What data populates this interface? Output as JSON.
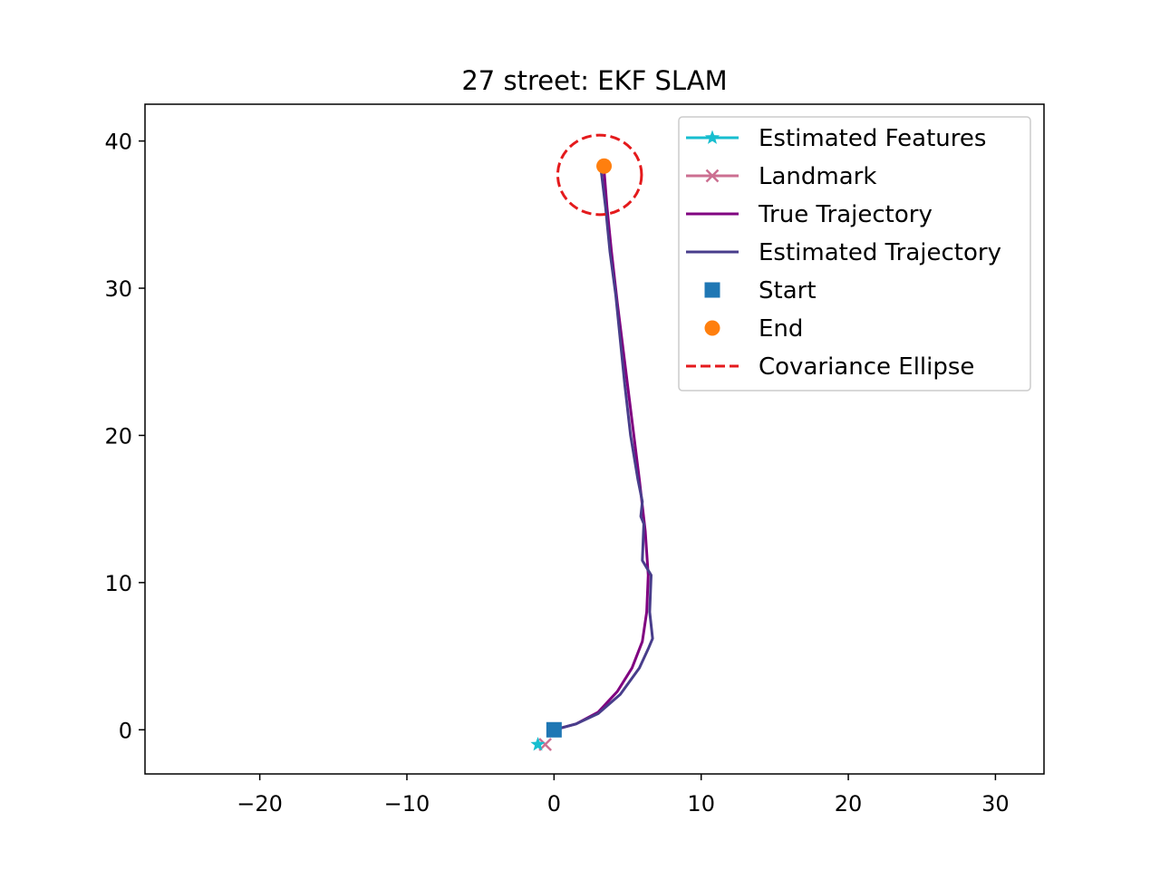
{
  "chart_data": {
    "type": "line",
    "title": "27 street: EKF SLAM",
    "xlabel": "",
    "ylabel": "",
    "xlim": [
      -27.8,
      33.3
    ],
    "ylim": [
      -3.0,
      42.5
    ],
    "xticks": [
      -20,
      -10,
      0,
      10,
      20,
      30
    ],
    "yticks": [
      0,
      10,
      20,
      30,
      40
    ],
    "xtick_labels": [
      "−20",
      "−10",
      "0",
      "10",
      "20",
      "30"
    ],
    "ytick_labels": [
      "0",
      "10",
      "20",
      "30",
      "40"
    ],
    "grid": false,
    "legend_position": "top-right",
    "colors": {
      "estimated_features": "#17becf",
      "landmark": "#cc6f91",
      "true_trajectory": "#800080",
      "estimated_trajectory": "#483d8b",
      "start": "#1f77b4",
      "end": "#ff7f0e",
      "covariance": "#e41a1c"
    },
    "legend": [
      {
        "key": "estimated_features",
        "label": "Estimated Features",
        "style": "star-line"
      },
      {
        "key": "landmark",
        "label": "Landmark",
        "style": "x-line"
      },
      {
        "key": "true_trajectory",
        "label": "True Trajectory",
        "style": "line"
      },
      {
        "key": "estimated_trajectory",
        "label": "Estimated Trajectory",
        "style": "line"
      },
      {
        "key": "start",
        "label": "Start",
        "style": "square"
      },
      {
        "key": "end",
        "label": "End",
        "style": "circle"
      },
      {
        "key": "covariance",
        "label": "Covariance Ellipse",
        "style": "dashed"
      }
    ],
    "series": [
      {
        "key": "true_trajectory",
        "name": "True Trajectory",
        "x": [
          0,
          1.5,
          3.0,
          4.3,
          5.3,
          6.0,
          6.3,
          6.4,
          6.2,
          5.8,
          5.3,
          4.8,
          4.3,
          3.9,
          3.6,
          3.4
        ],
        "y": [
          0,
          0.4,
          1.2,
          2.6,
          4.2,
          6.0,
          8.0,
          10.5,
          13.5,
          17.0,
          21.0,
          25.0,
          29.0,
          32.5,
          35.5,
          38.0
        ]
      },
      {
        "key": "estimated_trajectory",
        "name": "Estimated Trajectory",
        "x": [
          0,
          1.5,
          3.0,
          4.5,
          5.8,
          6.4,
          6.7,
          6.5,
          6.6,
          6.0,
          6.1,
          5.9,
          6.0,
          5.7,
          5.2,
          4.8,
          4.5,
          4.2,
          3.8,
          3.5,
          3.2
        ],
        "y": [
          0,
          0.4,
          1.1,
          2.4,
          4.2,
          5.5,
          6.2,
          8.0,
          10.5,
          11.5,
          14.0,
          14.5,
          15.5,
          17.0,
          20.0,
          23.5,
          26.5,
          29.5,
          32.5,
          35.5,
          38.0
        ]
      }
    ],
    "estimated_features": [
      {
        "x": -1.1,
        "y": -1.0
      }
    ],
    "landmarks": [
      {
        "x": -0.6,
        "y": -1.0
      }
    ],
    "start": {
      "x": 0.0,
      "y": 0.0
    },
    "end": {
      "x": 3.4,
      "y": 38.3
    },
    "covariance_ellipse": {
      "cx": 3.1,
      "cy": 37.7,
      "rx": 2.85,
      "ry": 2.7
    }
  }
}
